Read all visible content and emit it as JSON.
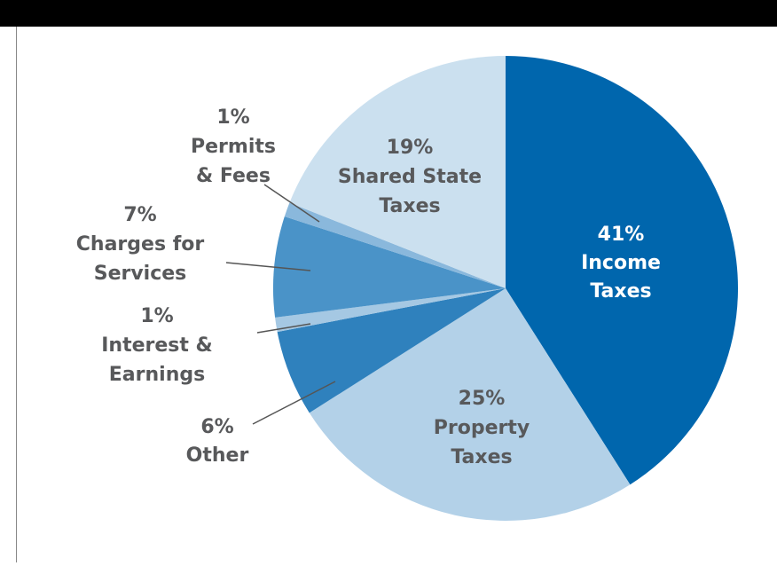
{
  "chart_data": {
    "type": "pie",
    "categories": [
      [
        "Income",
        "Taxes"
      ],
      [
        "Property",
        "Taxes"
      ],
      [
        "Other"
      ],
      [
        "Interest &",
        "Earnings"
      ],
      [
        "Charges for",
        "Services"
      ],
      [
        "Permits",
        "& Fees"
      ],
      [
        "Shared State",
        "Taxes"
      ]
    ],
    "values": [
      41,
      25,
      6,
      1,
      7,
      1,
      19
    ],
    "value_labels": [
      "41%",
      "25%",
      "6%",
      "1%",
      "7%",
      "1%",
      "19%"
    ],
    "colors": [
      "#0066ad",
      "#b3d1e8",
      "#2f81bd",
      "#a5c8e3",
      "#4a93c8",
      "#8ab8dc",
      "#cbe0ef"
    ]
  }
}
